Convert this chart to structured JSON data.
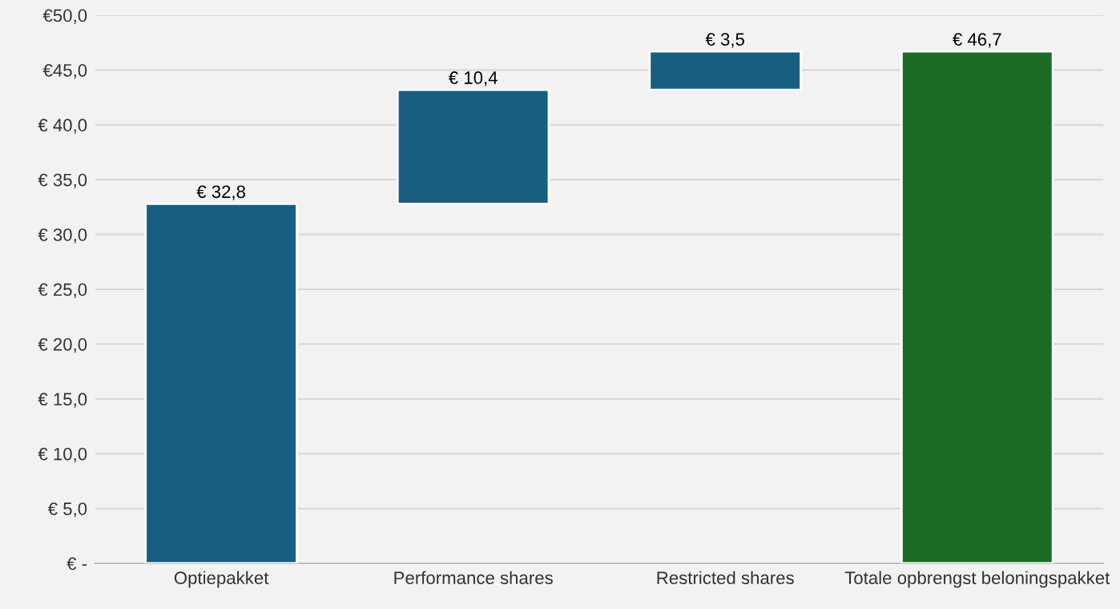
{
  "chart_data": {
    "type": "bar",
    "categories": [
      "Optiepakket",
      "Performance shares",
      "Restricted shares",
      "Totale opbrengst beloningspakket"
    ],
    "values": [
      32.8,
      10.4,
      3.5,
      46.7
    ],
    "base": [
      0,
      32.8,
      43.2,
      0
    ],
    "colors": [
      "#175e80",
      "#175e80",
      "#175e80",
      "#1b6b25"
    ],
    "value_labels": [
      "€ 32,8",
      "€ 10,4",
      "€ 3,5",
      "€ 46,7"
    ],
    "ylim": [
      0,
      50
    ],
    "yticks": [
      {
        "value": 0,
        "label": "€ -"
      },
      {
        "value": 5,
        "label": "€ 5,0"
      },
      {
        "value": 10,
        "label": "€ 10,0"
      },
      {
        "value": 15,
        "label": "€ 15,0"
      },
      {
        "value": 20,
        "label": "€ 20,0"
      },
      {
        "value": 25,
        "label": "€ 25,0"
      },
      {
        "value": 30,
        "label": "€ 30,0"
      },
      {
        "value": 35,
        "label": "€ 35,0"
      },
      {
        "value": 40,
        "label": "€ 40,0"
      },
      {
        "value": 45,
        "label": "€45,0"
      },
      {
        "value": 50,
        "label": "€50,0"
      }
    ],
    "grid": "y",
    "legend": false
  }
}
